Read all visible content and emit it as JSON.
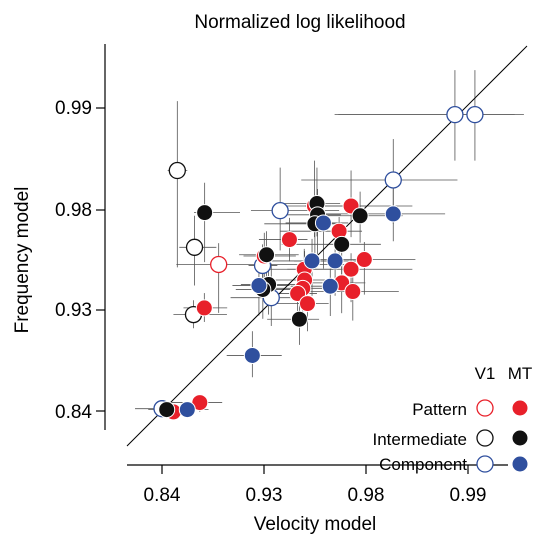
{
  "chart_data": {
    "type": "scatter",
    "title": "Normalized log likelihood",
    "xlabel": "Velocity model",
    "ylabel": "Frequency model",
    "scale": "logit-like (tick labels 0.84, 0.93, 0.98, 0.99)",
    "x_ticks": [
      "0.84",
      "0.93",
      "0.98",
      "0.99"
    ],
    "y_ticks": [
      "0.99",
      "0.98",
      "0.93",
      "0.84"
    ],
    "grid": false,
    "diagonal_reference_line": true,
    "legend": {
      "placement": "bottom-right",
      "col_headers": [
        "V1",
        "MT"
      ],
      "rows": [
        {
          "label": "Pattern",
          "color": "#e8202a"
        },
        {
          "label": "Intermediate",
          "color": "#111111"
        },
        {
          "label": "Component",
          "color": "#2f4f9e"
        }
      ]
    },
    "colors": {
      "Pattern": "#e8202a",
      "Intermediate": "#111111",
      "Component": "#2f4f9e",
      "axis": "#000000",
      "errorbar": "#555555"
    },
    "series": [
      {
        "name": "V1 Pattern",
        "area": "V1",
        "class": "Pattern",
        "fill": "none",
        "points": [
          {
            "x": 0.895,
            "y": 0.958,
            "xerr": [
              0.04,
              0.08
            ],
            "yerr": [
              0.03,
              0.01
            ]
          }
        ]
      },
      {
        "name": "V1 Intermediate",
        "area": "V1",
        "class": "Intermediate",
        "fill": "none",
        "points": [
          {
            "x": 0.856,
            "y": 0.9845,
            "xerr": [
              0.01,
              0.01
            ],
            "yerr": [
              0.028,
              0.006
            ]
          },
          {
            "x": 0.873,
            "y": 0.9662,
            "xerr": [
              0.015,
              0.02
            ],
            "yerr": [
              0.02,
              0.012
            ]
          },
          {
            "x": 0.872,
            "y": 0.9268,
            "xerr": [
              0.02,
              0.03
            ],
            "yerr": [
              0.01,
              0.01
            ]
          }
        ]
      },
      {
        "name": "V1 Component",
        "area": "V1",
        "class": "Component",
        "fill": "none",
        "points": [
          {
            "x": 0.989,
            "y": 0.9895,
            "xerr": [
              0.02,
              0.004
            ],
            "yerr": [
              0.004,
              0.003
            ]
          },
          {
            "x": 0.9905,
            "y": 0.9895,
            "xerr": [
              0.02,
              0.003
            ],
            "yerr": [
              0.004,
              0.003
            ]
          },
          {
            "x": 0.9832,
            "y": 0.9835,
            "xerr": [
              0.03,
              0.006
            ],
            "yerr": [
              0.008,
              0.004
            ]
          },
          {
            "x": 0.9408,
            "y": 0.9798,
            "xerr": [
              0.02,
              0.03
            ],
            "yerr": [
              0.015,
              0.005
            ]
          },
          {
            "x": 0.929,
            "y": 0.9575,
            "xerr": [
              0.01,
              0.01
            ],
            "yerr": [
              0.01,
              0.01
            ]
          },
          {
            "x": 0.935,
            "y": 0.9385,
            "xerr": [
              0.03,
              0.02
            ],
            "yerr": [
              0.02,
              0.02
            ]
          },
          {
            "x": 0.84,
            "y": 0.8425,
            "xerr": [
              0.03,
              0.02
            ],
            "yerr": [
              0.005,
              0.005
            ]
          }
        ]
      },
      {
        "name": "MT Pattern",
        "area": "MT",
        "class": "Pattern",
        "fill": "solid",
        "points": [
          {
            "x": 0.96,
            "y": 0.9805,
            "xerr": [
              0.02,
              0.02
            ],
            "yerr": [
              0.01,
              0.005
            ]
          },
          {
            "x": 0.9752,
            "y": 0.9805,
            "xerr": [
              0.02,
              0.01
            ],
            "yerr": [
              0.01,
              0.004
            ]
          },
          {
            "x": 0.9708,
            "y": 0.9728,
            "xerr": [
              0.03,
              0.008
            ],
            "yerr": [
              0.01,
              0.005
            ]
          },
          {
            "x": 0.9465,
            "y": 0.9695,
            "xerr": [
              0.02,
              0.01
            ],
            "yerr": [
              0.01,
              0.008
            ]
          },
          {
            "x": 0.9302,
            "y": 0.9622,
            "xerr": [
              0.015,
              0.02
            ],
            "yerr": [
              0.02,
              0.01
            ]
          },
          {
            "x": 0.9548,
            "y": 0.9555,
            "xerr": [
              0.03,
              0.015
            ],
            "yerr": [
              0.02,
              0.01
            ]
          },
          {
            "x": 0.9795,
            "y": 0.9605,
            "xerr": [
              0.02,
              0.006
            ],
            "yerr": [
              0.02,
              0.008
            ]
          },
          {
            "x": 0.9752,
            "y": 0.9555,
            "xerr": [
              0.03,
              0.01
            ],
            "yerr": [
              0.02,
              0.008
            ]
          },
          {
            "x": 0.955,
            "y": 0.9495,
            "xerr": [
              0.02,
              0.01
            ],
            "yerr": [
              0.02,
              0.015
            ]
          },
          {
            "x": 0.954,
            "y": 0.9445,
            "xerr": [
              0.02,
              0.01
            ],
            "yerr": [
              0.02,
              0.01
            ]
          },
          {
            "x": 0.9512,
            "y": 0.9412,
            "xerr": [
              0.02,
              0.01
            ],
            "yerr": [
              0.02,
              0.01
            ]
          },
          {
            "x": 0.9718,
            "y": 0.9478,
            "xerr": [
              0.02,
              0.008
            ],
            "yerr": [
              0.02,
              0.01
            ]
          },
          {
            "x": 0.9758,
            "y": 0.9425,
            "xerr": [
              0.02,
              0.008
            ],
            "yerr": [
              0.02,
              0.01
            ]
          },
          {
            "x": 0.9565,
            "y": 0.9345,
            "xerr": [
              0.02,
              0.01
            ],
            "yerr": [
              0.02,
              0.01
            ]
          },
          {
            "x": 0.8822,
            "y": 0.9315,
            "xerr": [
              0.02,
              0.02
            ],
            "yerr": [
              0.01,
              0.01
            ]
          },
          {
            "x": 0.852,
            "y": 0.839,
            "xerr": [
              0.01,
              0.01
            ],
            "yerr": [
              0.005,
              0.005
            ]
          },
          {
            "x": 0.878,
            "y": 0.849,
            "xerr": [
              0.03,
              0.02
            ],
            "yerr": [
              0.01,
              0.005
            ]
          }
        ]
      },
      {
        "name": "MT Intermediate",
        "area": "MT",
        "class": "Intermediate",
        "fill": "solid",
        "points": [
          {
            "x": 0.8825,
            "y": 0.9792,
            "xerr": [
              0.01,
              0.03
            ],
            "yerr": [
              0.02,
              0.004
            ]
          },
          {
            "x": 0.9612,
            "y": 0.9808,
            "xerr": [
              0.02,
              0.01
            ],
            "yerr": [
              0.01,
              0.004
            ]
          },
          {
            "x": 0.9615,
            "y": 0.9785,
            "xerr": [
              0.02,
              0.01
            ],
            "yerr": [
              0.02,
              0.004
            ]
          },
          {
            "x": 0.9602,
            "y": 0.9755,
            "xerr": [
              0.03,
              0.01
            ],
            "yerr": [
              0.02,
              0.005
            ]
          },
          {
            "x": 0.9782,
            "y": 0.9782,
            "xerr": [
              0.02,
              0.006
            ],
            "yerr": [
              0.01,
              0.004
            ]
          },
          {
            "x": 0.9718,
            "y": 0.9675,
            "xerr": [
              0.03,
              0.01
            ],
            "yerr": [
              0.02,
              0.008
            ]
          },
          {
            "x": 0.9318,
            "y": 0.9628,
            "xerr": [
              0.02,
              0.02
            ],
            "yerr": [
              0.02,
              0.01
            ]
          },
          {
            "x": 0.9332,
            "y": 0.9468,
            "xerr": [
              0.02,
              0.02
            ],
            "yerr": [
              0.02,
              0.01
            ]
          },
          {
            "x": 0.9292,
            "y": 0.9438,
            "xerr": [
              0.02,
              0.02
            ],
            "yerr": [
              0.02,
              0.01
            ]
          },
          {
            "x": 0.9522,
            "y": 0.9235,
            "xerr": [
              0.02,
              0.01
            ],
            "yerr": [
              0.02,
              0.02
            ]
          },
          {
            "x": 0.845,
            "y": 0.8415,
            "xerr": [
              0.02,
              0.02
            ],
            "yerr": [
              0.005,
              0.005
            ]
          }
        ]
      },
      {
        "name": "MT Component",
        "area": "MT",
        "class": "Component",
        "fill": "solid",
        "points": [
          {
            "x": 0.9832,
            "y": 0.9788,
            "xerr": [
              0.02,
              0.005
            ],
            "yerr": [
              0.01,
              0.004
            ]
          },
          {
            "x": 0.9642,
            "y": 0.9758,
            "xerr": [
              0.02,
              0.01
            ],
            "yerr": [
              0.02,
              0.005
            ]
          },
          {
            "x": 0.9588,
            "y": 0.9598,
            "xerr": [
              0.03,
              0.01
            ],
            "yerr": [
              0.02,
              0.01
            ]
          },
          {
            "x": 0.9692,
            "y": 0.9598,
            "xerr": [
              0.02,
              0.01
            ],
            "yerr": [
              0.02,
              0.01
            ]
          },
          {
            "x": 0.9672,
            "y": 0.9458,
            "xerr": [
              0.02,
              0.01
            ],
            "yerr": [
              0.02,
              0.01
            ]
          },
          {
            "x": 0.9265,
            "y": 0.9462,
            "xerr": [
              0.02,
              0.02
            ],
            "yerr": [
              0.02,
              0.01
            ]
          },
          {
            "x": 0.9218,
            "y": 0.8945,
            "xerr": [
              0.02,
              0.02
            ],
            "yerr": [
              0.02,
              0.02
            ]
          },
          {
            "x": 0.866,
            "y": 0.8415,
            "xerr": [
              0.02,
              0.02
            ],
            "yerr": [
              0.005,
              0.005
            ]
          }
        ]
      }
    ]
  }
}
